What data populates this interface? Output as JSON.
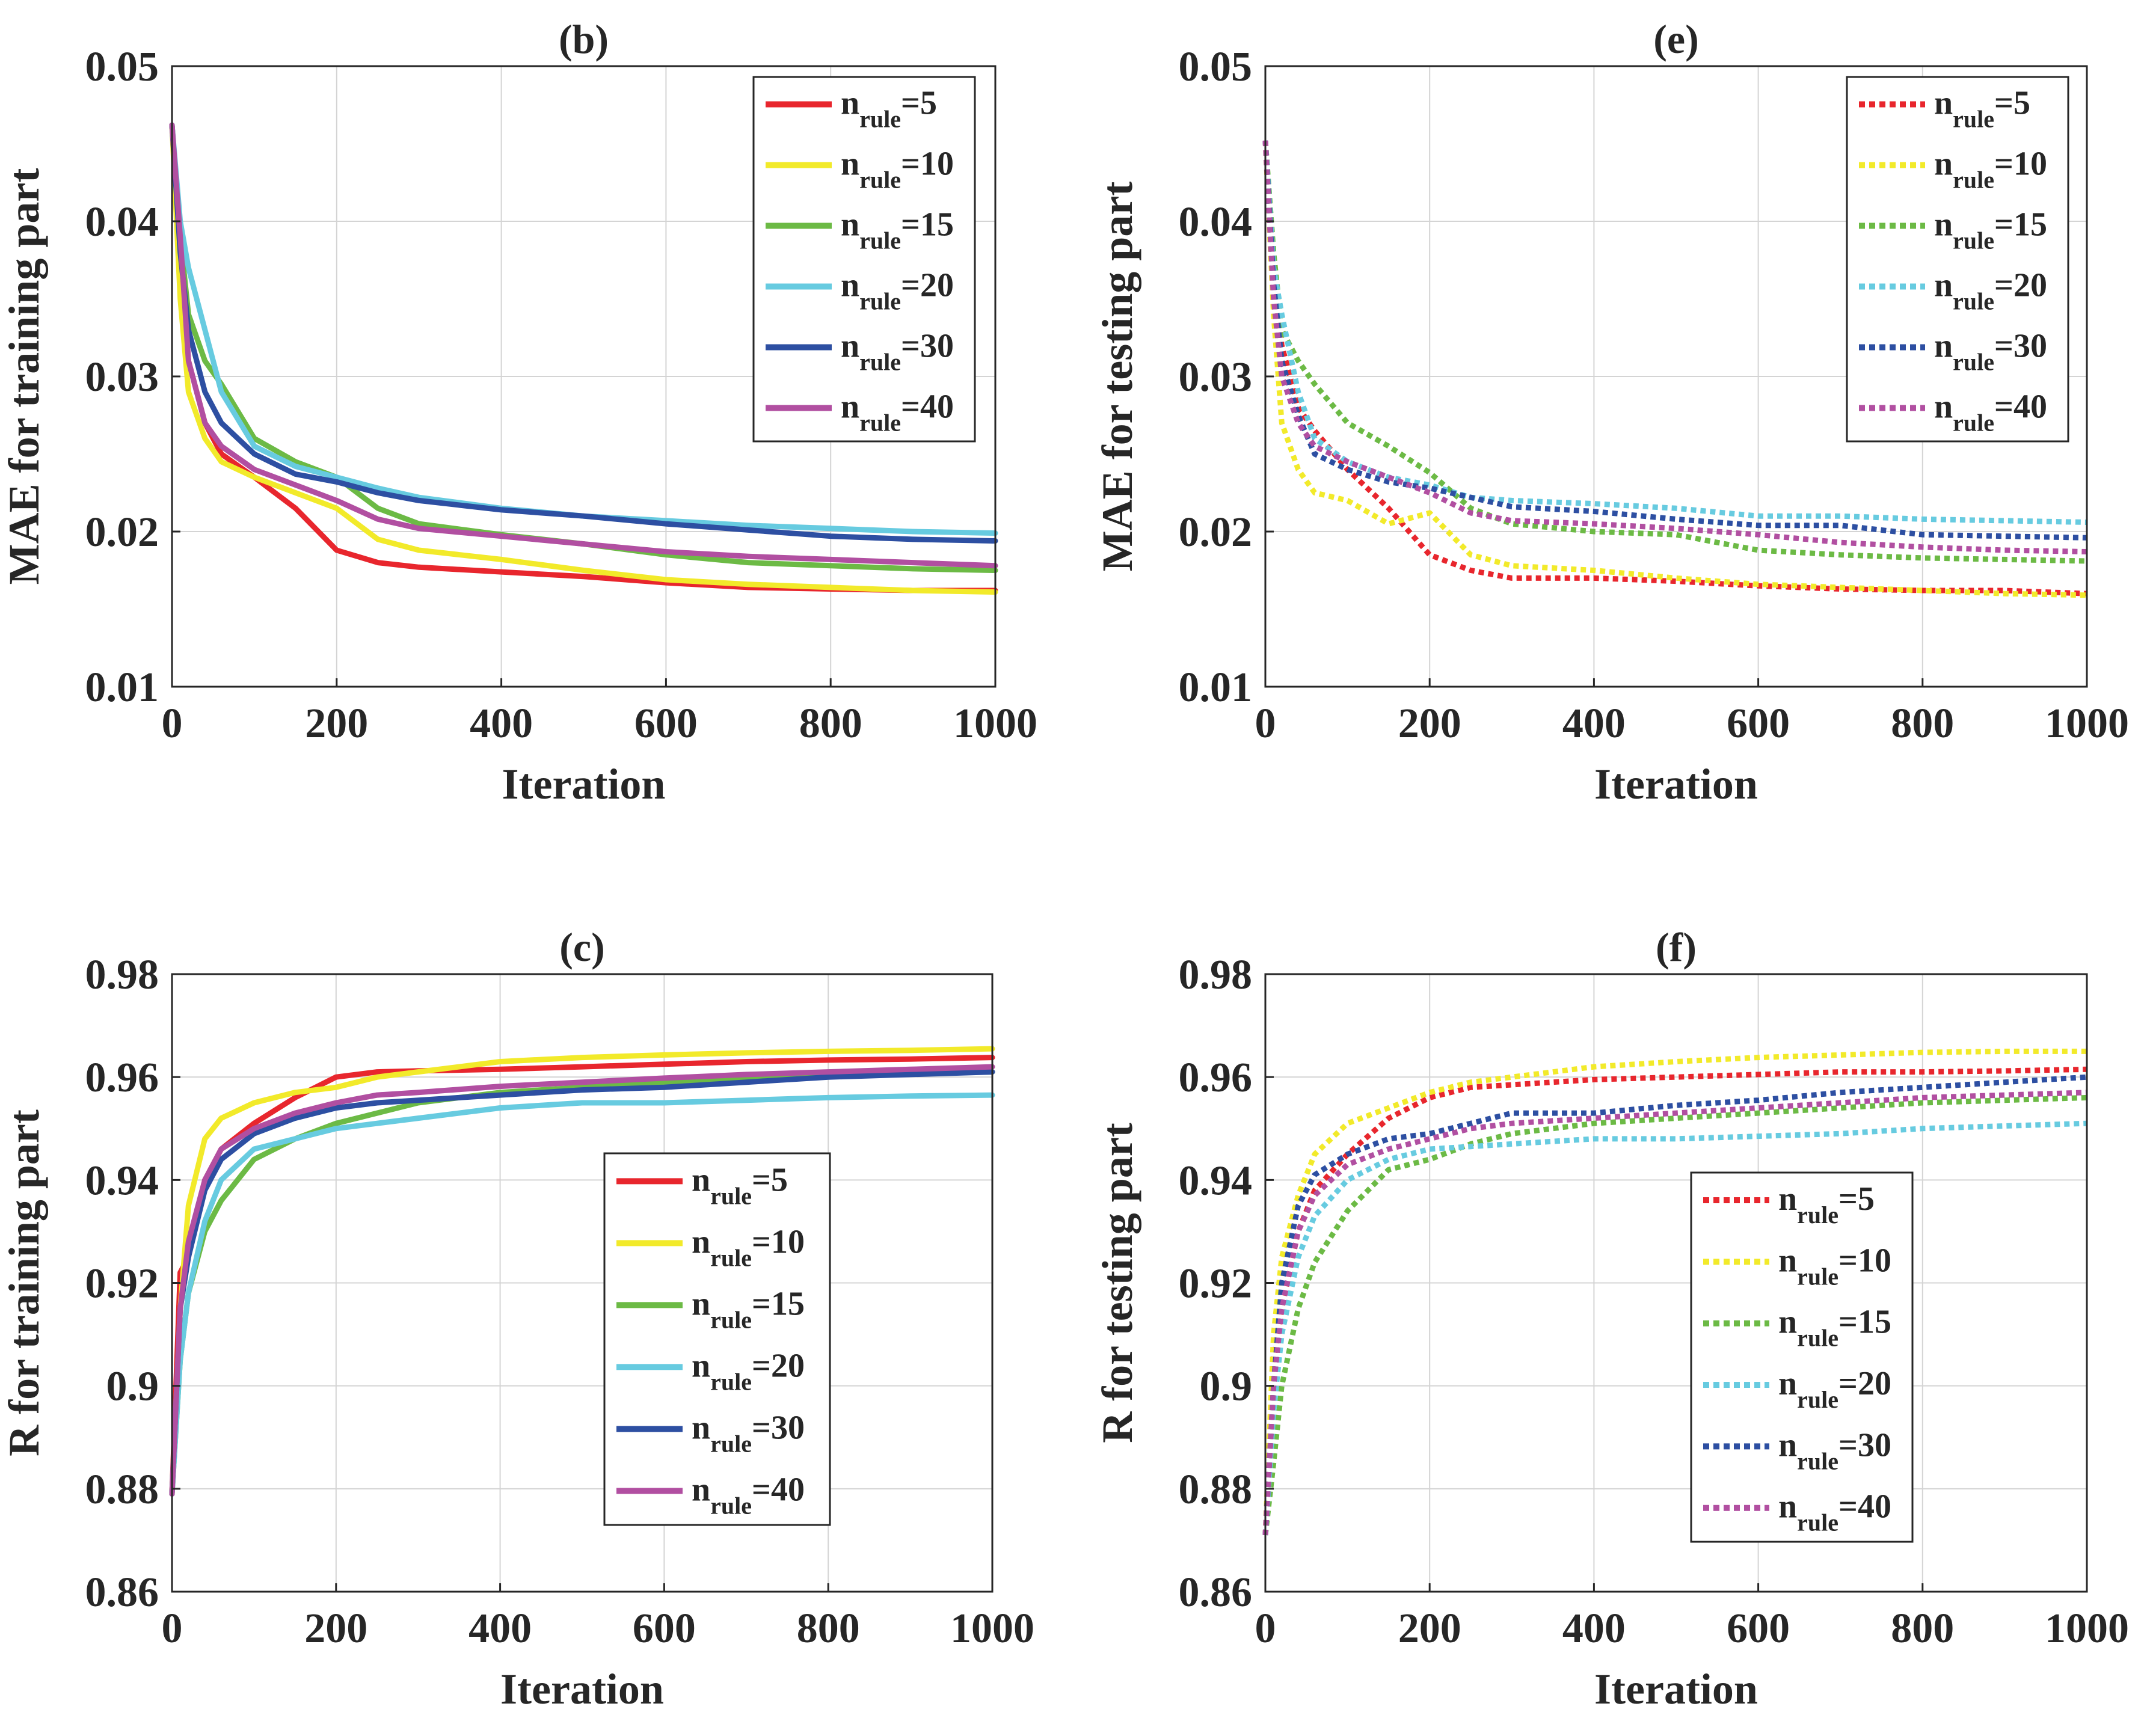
{
  "colors": {
    "red": "#e8262d",
    "yellow": "#f2ea2a",
    "green": "#6cba45",
    "cyan": "#67cbe0",
    "blue": "#2d4fa2",
    "magenta": "#b14fa1"
  },
  "chart_data": [
    {
      "id": "b",
      "type": "line",
      "title": "(b)",
      "xlabel": "Iteration",
      "ylabel": "MAE for training part",
      "xlim": [
        0,
        1000
      ],
      "ylim": [
        0.01,
        0.05
      ],
      "xticks": [
        "0",
        "200",
        "400",
        "600",
        "800",
        "1000"
      ],
      "yticks": [
        "0.01",
        "0.02",
        "0.03",
        "0.04",
        "0.05"
      ],
      "grid": true,
      "line_style": "solid",
      "legend_position": "top-right",
      "x": [
        0,
        10,
        20,
        40,
        60,
        100,
        150,
        200,
        250,
        300,
        400,
        500,
        600,
        700,
        800,
        900,
        1000
      ],
      "series": [
        {
          "name": "n_rule=5",
          "label_base": "n",
          "label_sub": "rule",
          "label_suffix": "=5",
          "color_key": "red",
          "values": [
            0.0462,
            0.038,
            0.031,
            0.027,
            0.025,
            0.0235,
            0.0215,
            0.0188,
            0.018,
            0.0177,
            0.0174,
            0.0171,
            0.0167,
            0.0164,
            0.0163,
            0.0162,
            0.0162
          ]
        },
        {
          "name": "n_rule=10",
          "label_base": "n",
          "label_sub": "rule",
          "label_suffix": "=10",
          "color_key": "yellow",
          "values": [
            0.0462,
            0.035,
            0.029,
            0.026,
            0.0245,
            0.0235,
            0.0225,
            0.0215,
            0.0195,
            0.0188,
            0.0182,
            0.0175,
            0.0169,
            0.0166,
            0.0164,
            0.0162,
            0.0161
          ]
        },
        {
          "name": "n_rule=15",
          "label_base": "n",
          "label_sub": "rule",
          "label_suffix": "=15",
          "color_key": "green",
          "values": [
            0.0462,
            0.039,
            0.034,
            0.031,
            0.0295,
            0.026,
            0.0245,
            0.0235,
            0.0215,
            0.0205,
            0.0198,
            0.0192,
            0.0185,
            0.018,
            0.0178,
            0.0176,
            0.0175
          ]
        },
        {
          "name": "n_rule=20",
          "label_base": "n",
          "label_sub": "rule",
          "label_suffix": "=20",
          "color_key": "cyan",
          "values": [
            0.0462,
            0.04,
            0.037,
            0.033,
            0.029,
            0.0255,
            0.0242,
            0.0235,
            0.0228,
            0.0222,
            0.0215,
            0.021,
            0.0207,
            0.0204,
            0.0202,
            0.02,
            0.0199
          ]
        },
        {
          "name": "n_rule=30",
          "label_base": "n",
          "label_sub": "rule",
          "label_suffix": "=30",
          "color_key": "blue",
          "values": [
            0.0462,
            0.038,
            0.033,
            0.029,
            0.027,
            0.025,
            0.0237,
            0.0232,
            0.0225,
            0.022,
            0.0214,
            0.021,
            0.0205,
            0.0201,
            0.0197,
            0.0195,
            0.0194
          ]
        },
        {
          "name": "n_rule=40",
          "label_base": "n",
          "label_sub": "rule",
          "label_suffix": "=40",
          "color_key": "magenta",
          "values": [
            0.0462,
            0.039,
            0.031,
            0.027,
            0.0255,
            0.024,
            0.023,
            0.022,
            0.0208,
            0.0202,
            0.0197,
            0.0192,
            0.0187,
            0.0184,
            0.0182,
            0.018,
            0.0178
          ]
        }
      ]
    },
    {
      "id": "e",
      "type": "line",
      "title": "(e)",
      "xlabel": "Iteration",
      "ylabel": "MAE for testing part",
      "xlim": [
        0,
        1000
      ],
      "ylim": [
        0.01,
        0.05
      ],
      "xticks": [
        "0",
        "200",
        "400",
        "600",
        "800",
        "1000"
      ],
      "yticks": [
        "0.01",
        "0.02",
        "0.03",
        "0.04",
        "0.05"
      ],
      "grid": true,
      "line_style": "dotted",
      "legend_position": "top-right",
      "x": [
        0,
        10,
        20,
        40,
        60,
        100,
        150,
        200,
        250,
        300,
        400,
        500,
        600,
        700,
        800,
        900,
        1000
      ],
      "series": [
        {
          "name": "n_rule=5",
          "label_base": "n",
          "label_sub": "rule",
          "label_suffix": "=5",
          "color_key": "red",
          "values": [
            0.0452,
            0.037,
            0.032,
            0.028,
            0.0265,
            0.024,
            0.0215,
            0.0185,
            0.0175,
            0.017,
            0.017,
            0.0168,
            0.0165,
            0.0163,
            0.0162,
            0.0162,
            0.016
          ]
        },
        {
          "name": "n_rule=10",
          "label_base": "n",
          "label_sub": "rule",
          "label_suffix": "=10",
          "color_key": "yellow",
          "values": [
            0.0452,
            0.034,
            0.027,
            0.024,
            0.0225,
            0.022,
            0.0205,
            0.0212,
            0.0185,
            0.0178,
            0.0175,
            0.017,
            0.0166,
            0.0164,
            0.0162,
            0.016,
            0.0159
          ]
        },
        {
          "name": "n_rule=15",
          "label_base": "n",
          "label_sub": "rule",
          "label_suffix": "=15",
          "color_key": "green",
          "values": [
            0.0452,
            0.038,
            0.033,
            0.031,
            0.0295,
            0.027,
            0.0255,
            0.0238,
            0.0215,
            0.0205,
            0.02,
            0.0198,
            0.0188,
            0.0185,
            0.0183,
            0.0182,
            0.0181
          ]
        },
        {
          "name": "n_rule=20",
          "label_base": "n",
          "label_sub": "rule",
          "label_suffix": "=20",
          "color_key": "cyan",
          "values": [
            0.0452,
            0.037,
            0.034,
            0.029,
            0.026,
            0.0245,
            0.0235,
            0.023,
            0.0222,
            0.022,
            0.0218,
            0.0215,
            0.021,
            0.021,
            0.0208,
            0.0207,
            0.0206
          ]
        },
        {
          "name": "n_rule=30",
          "label_base": "n",
          "label_sub": "rule",
          "label_suffix": "=30",
          "color_key": "blue",
          "values": [
            0.0452,
            0.036,
            0.031,
            0.0275,
            0.025,
            0.024,
            0.0232,
            0.0228,
            0.0222,
            0.0216,
            0.0213,
            0.0208,
            0.0204,
            0.0204,
            0.0198,
            0.0197,
            0.0196
          ]
        },
        {
          "name": "n_rule=40",
          "label_base": "n",
          "label_sub": "rule",
          "label_suffix": "=40",
          "color_key": "magenta",
          "values": [
            0.0452,
            0.035,
            0.03,
            0.027,
            0.0255,
            0.0245,
            0.0235,
            0.0225,
            0.0212,
            0.0207,
            0.0205,
            0.0202,
            0.0198,
            0.0193,
            0.019,
            0.0188,
            0.0187
          ]
        }
      ]
    },
    {
      "id": "c",
      "type": "line",
      "title": "(c)",
      "xlabel": "Iteration",
      "ylabel": "R for training part",
      "xlim": [
        0,
        1000
      ],
      "ylim": [
        0.86,
        0.98
      ],
      "xticks": [
        "0",
        "200",
        "400",
        "600",
        "800",
        "1000"
      ],
      "yticks": [
        "0.86",
        "0.88",
        "0.9",
        "0.92",
        "0.94",
        "0.96",
        "0.98"
      ],
      "grid": true,
      "line_style": "solid",
      "legend_position": "center-right",
      "x": [
        0,
        10,
        20,
        40,
        60,
        100,
        150,
        200,
        250,
        300,
        400,
        500,
        600,
        700,
        800,
        900,
        1000
      ],
      "series": [
        {
          "name": "n_rule=5",
          "label_base": "n",
          "label_sub": "rule",
          "label_suffix": "=5",
          "color_key": "red",
          "values": [
            0.879,
            0.922,
            0.925,
            0.94,
            0.946,
            0.951,
            0.956,
            0.96,
            0.961,
            0.9612,
            0.9615,
            0.962,
            0.9625,
            0.963,
            0.9633,
            0.9635,
            0.9638
          ]
        },
        {
          "name": "n_rule=10",
          "label_base": "n",
          "label_sub": "rule",
          "label_suffix": "=10",
          "color_key": "yellow",
          "values": [
            0.879,
            0.915,
            0.935,
            0.948,
            0.952,
            0.955,
            0.957,
            0.958,
            0.96,
            0.961,
            0.963,
            0.9638,
            0.9643,
            0.9647,
            0.965,
            0.9652,
            0.9655
          ]
        },
        {
          "name": "n_rule=15",
          "label_base": "n",
          "label_sub": "rule",
          "label_suffix": "=15",
          "color_key": "green",
          "values": [
            0.879,
            0.905,
            0.918,
            0.93,
            0.936,
            0.944,
            0.948,
            0.951,
            0.953,
            0.955,
            0.957,
            0.958,
            0.959,
            0.9598,
            0.9603,
            0.9608,
            0.961
          ]
        },
        {
          "name": "n_rule=20",
          "label_base": "n",
          "label_sub": "rule",
          "label_suffix": "=20",
          "color_key": "cyan",
          "values": [
            0.879,
            0.905,
            0.918,
            0.932,
            0.94,
            0.946,
            0.948,
            0.95,
            0.951,
            0.952,
            0.954,
            0.955,
            0.955,
            0.9555,
            0.956,
            0.9563,
            0.9565
          ]
        },
        {
          "name": "n_rule=30",
          "label_base": "n",
          "label_sub": "rule",
          "label_suffix": "=30",
          "color_key": "blue",
          "values": [
            0.879,
            0.915,
            0.925,
            0.938,
            0.944,
            0.949,
            0.952,
            0.954,
            0.955,
            0.9555,
            0.9565,
            0.9575,
            0.958,
            0.959,
            0.96,
            0.9605,
            0.961
          ]
        },
        {
          "name": "n_rule=40",
          "label_base": "n",
          "label_sub": "rule",
          "label_suffix": "=40",
          "color_key": "magenta",
          "values": [
            0.879,
            0.915,
            0.928,
            0.94,
            0.946,
            0.95,
            0.953,
            0.955,
            0.9565,
            0.957,
            0.9582,
            0.959,
            0.9598,
            0.9605,
            0.961,
            0.9615,
            0.962
          ]
        }
      ]
    },
    {
      "id": "f",
      "type": "line",
      "title": "(f)",
      "xlabel": "Iteration",
      "ylabel": "R for testing part",
      "xlim": [
        0,
        1000
      ],
      "ylim": [
        0.86,
        0.98
      ],
      "xticks": [
        "0",
        "200",
        "400",
        "600",
        "800",
        "1000"
      ],
      "yticks": [
        "0.86",
        "0.88",
        "0.9",
        "0.92",
        "0.94",
        "0.96",
        "0.98"
      ],
      "grid": true,
      "line_style": "dotted",
      "legend_position": "center-right",
      "x": [
        0,
        10,
        20,
        40,
        60,
        100,
        150,
        200,
        250,
        300,
        400,
        500,
        600,
        700,
        800,
        900,
        1000
      ],
      "series": [
        {
          "name": "n_rule=5",
          "label_base": "n",
          "label_sub": "rule",
          "label_suffix": "=5",
          "color_key": "red",
          "values": [
            0.871,
            0.905,
            0.915,
            0.93,
            0.938,
            0.945,
            0.952,
            0.956,
            0.958,
            0.9585,
            0.9595,
            0.96,
            0.9605,
            0.961,
            0.961,
            0.9612,
            0.9615
          ]
        },
        {
          "name": "n_rule=10",
          "label_base": "n",
          "label_sub": "rule",
          "label_suffix": "=10",
          "color_key": "yellow",
          "values": [
            0.871,
            0.91,
            0.925,
            0.937,
            0.945,
            0.951,
            0.954,
            0.957,
            0.959,
            0.96,
            0.962,
            0.963,
            0.9638,
            0.9643,
            0.9648,
            0.965,
            0.965
          ]
        },
        {
          "name": "n_rule=15",
          "label_base": "n",
          "label_sub": "rule",
          "label_suffix": "=15",
          "color_key": "green",
          "values": [
            0.871,
            0.885,
            0.9,
            0.915,
            0.924,
            0.934,
            0.942,
            0.944,
            0.947,
            0.949,
            0.951,
            0.952,
            0.953,
            0.954,
            0.955,
            0.9555,
            0.956
          ]
        },
        {
          "name": "n_rule=20",
          "label_base": "n",
          "label_sub": "rule",
          "label_suffix": "=20",
          "color_key": "cyan",
          "values": [
            0.871,
            0.895,
            0.91,
            0.925,
            0.933,
            0.94,
            0.944,
            0.946,
            0.9465,
            0.947,
            0.948,
            0.948,
            0.9485,
            0.949,
            0.95,
            0.9505,
            0.951
          ]
        },
        {
          "name": "n_rule=30",
          "label_base": "n",
          "label_sub": "rule",
          "label_suffix": "=30",
          "color_key": "blue",
          "values": [
            0.871,
            0.9,
            0.92,
            0.935,
            0.941,
            0.945,
            0.948,
            0.949,
            0.951,
            0.953,
            0.953,
            0.9545,
            0.9555,
            0.957,
            0.958,
            0.959,
            0.96
          ]
        },
        {
          "name": "n_rule=40",
          "label_base": "n",
          "label_sub": "rule",
          "label_suffix": "=40",
          "color_key": "magenta",
          "values": [
            0.871,
            0.9,
            0.915,
            0.93,
            0.937,
            0.943,
            0.946,
            0.948,
            0.95,
            0.951,
            0.952,
            0.953,
            0.954,
            0.955,
            0.956,
            0.9565,
            0.957
          ]
        }
      ]
    }
  ]
}
